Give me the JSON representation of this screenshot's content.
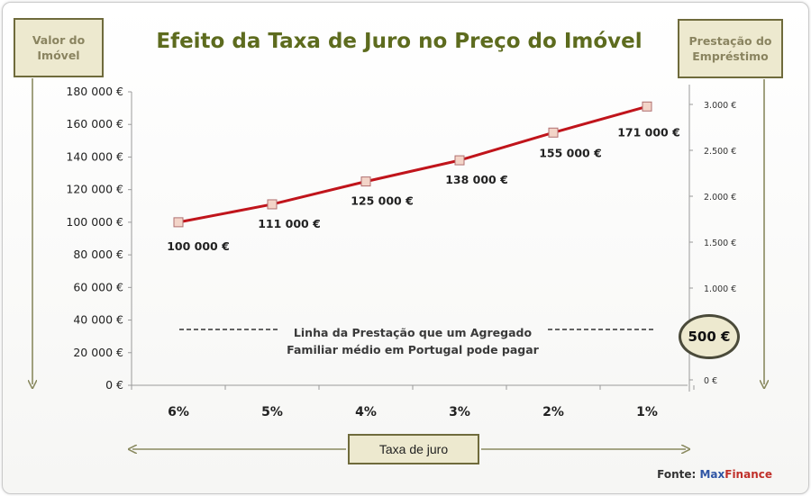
{
  "title": "Efeito da Taxa de Juro no Preço do Imóvel",
  "left_axis_label": "Valor do Imóvel",
  "right_axis_label": "Prestação do Empréstimo",
  "x_axis_label": "Taxa de juro",
  "reference_line_label": "Linha da Prestação que um Agregado Familiar médio em Portugal pode pagar",
  "payment_value": "500 €",
  "source": {
    "prefix": "Fonte:",
    "name_part1": "Max",
    "name_part2": "Finance"
  },
  "colors": {
    "line": "#c0141b",
    "marker_fill": "#f3d4c8",
    "title": "#5d6b1e",
    "box_fill": "#ede9cf",
    "box_border": "#6f6b3c",
    "arrow": "#8a8a60"
  },
  "chart_data": {
    "type": "line",
    "categories": [
      "6%",
      "5%",
      "4%",
      "3%",
      "2%",
      "1%"
    ],
    "values": [
      100000,
      111000,
      125000,
      138000,
      155000,
      171000
    ],
    "data_labels": [
      "100 000 €",
      "111 000 €",
      "125 000 €",
      "138 000 €",
      "155 000 €",
      "171 000 €"
    ],
    "title": "Efeito da Taxa de Juro no Preço do Imóvel",
    "xlabel": "Taxa de juro",
    "ylabel": "Valor do Imóvel",
    "ylim": [
      0,
      180000
    ],
    "y_ticks": [
      0,
      20000,
      40000,
      60000,
      80000,
      100000,
      120000,
      140000,
      160000,
      180000
    ],
    "y_tick_labels": [
      "0 €",
      "20 000 €",
      "40 000 €",
      "60 000 €",
      "80 000 €",
      "100 000 €",
      "120 000 €",
      "140 000 €",
      "160 000 €",
      "180 000 €"
    ],
    "y2label": "Prestação do Empréstimo",
    "y2lim": [
      0,
      3000
    ],
    "y2_ticks": [
      0,
      1000,
      1500,
      2000,
      2500,
      3000
    ],
    "y2_tick_labels": [
      "0 €",
      "1.000 €",
      "1.500 €",
      "2.000 €",
      "2.500 €",
      "3.000 €"
    ],
    "reference_line_value": 500,
    "grid": false,
    "legend": "none"
  }
}
